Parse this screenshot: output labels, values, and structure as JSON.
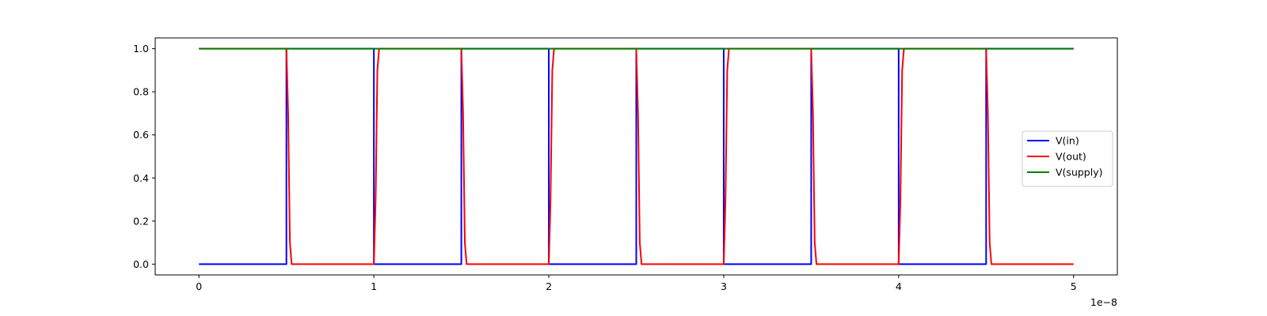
{
  "chart_data": {
    "type": "line",
    "title": "",
    "xlabel": "",
    "ylabel": "",
    "x_offset_label": "1e−8",
    "xlim": [
      -0.25,
      5.25
    ],
    "ylim": [
      -0.05,
      1.05
    ],
    "x_ticks": [
      0,
      1,
      2,
      3,
      4,
      5
    ],
    "x_tick_labels": [
      "0",
      "1",
      "2",
      "3",
      "4",
      "5"
    ],
    "y_ticks": [
      0.0,
      0.2,
      0.4,
      0.6,
      0.8,
      1.0
    ],
    "y_tick_labels": [
      "0.0",
      "0.2",
      "0.4",
      "0.6",
      "0.8",
      "1.0"
    ],
    "grid": false,
    "legend_position": "center-right",
    "series": [
      {
        "name": "V(in)",
        "color": "#0000ff",
        "x": [
          0,
          0.5,
          0.5,
          1.0,
          1.0,
          1.5,
          1.5,
          2.0,
          2.0,
          2.5,
          2.5,
          3.0,
          3.0,
          3.5,
          3.5,
          4.0,
          4.0,
          4.5,
          4.5,
          5.0
        ],
        "y": [
          0,
          0,
          1,
          1,
          0,
          0,
          1,
          1,
          0,
          0,
          1,
          1,
          0,
          0,
          1,
          1,
          0,
          0,
          1,
          1
        ]
      },
      {
        "name": "V(out)",
        "color": "#ff0000",
        "x": [
          0,
          0.5,
          0.51,
          0.515,
          0.52,
          0.53,
          1.0,
          1.01,
          1.015,
          1.02,
          1.03,
          1.5,
          1.51,
          1.515,
          1.52,
          1.53,
          2.0,
          2.01,
          2.015,
          2.02,
          2.03,
          2.5,
          2.51,
          2.515,
          2.52,
          2.53,
          3.0,
          3.01,
          3.015,
          3.02,
          3.03,
          3.5,
          3.51,
          3.515,
          3.52,
          3.53,
          4.0,
          4.01,
          4.015,
          4.02,
          4.03,
          4.5,
          4.51,
          4.515,
          4.52,
          4.53,
          5.0
        ],
        "y": [
          1,
          1,
          0.7,
          0.4,
          0.1,
          0,
          0,
          0.3,
          0.6,
          0.9,
          1,
          1,
          0.7,
          0.4,
          0.1,
          0,
          0,
          0.3,
          0.6,
          0.9,
          1,
          1,
          0.7,
          0.4,
          0.1,
          0,
          0,
          0.3,
          0.6,
          0.9,
          1,
          1,
          0.7,
          0.4,
          0.1,
          0,
          0,
          0.3,
          0.6,
          0.9,
          1,
          1,
          0.7,
          0.4,
          0.1,
          0,
          0
        ]
      },
      {
        "name": "V(supply)",
        "color": "#008000",
        "x": [
          0,
          5.0
        ],
        "y": [
          1,
          1
        ]
      }
    ]
  }
}
